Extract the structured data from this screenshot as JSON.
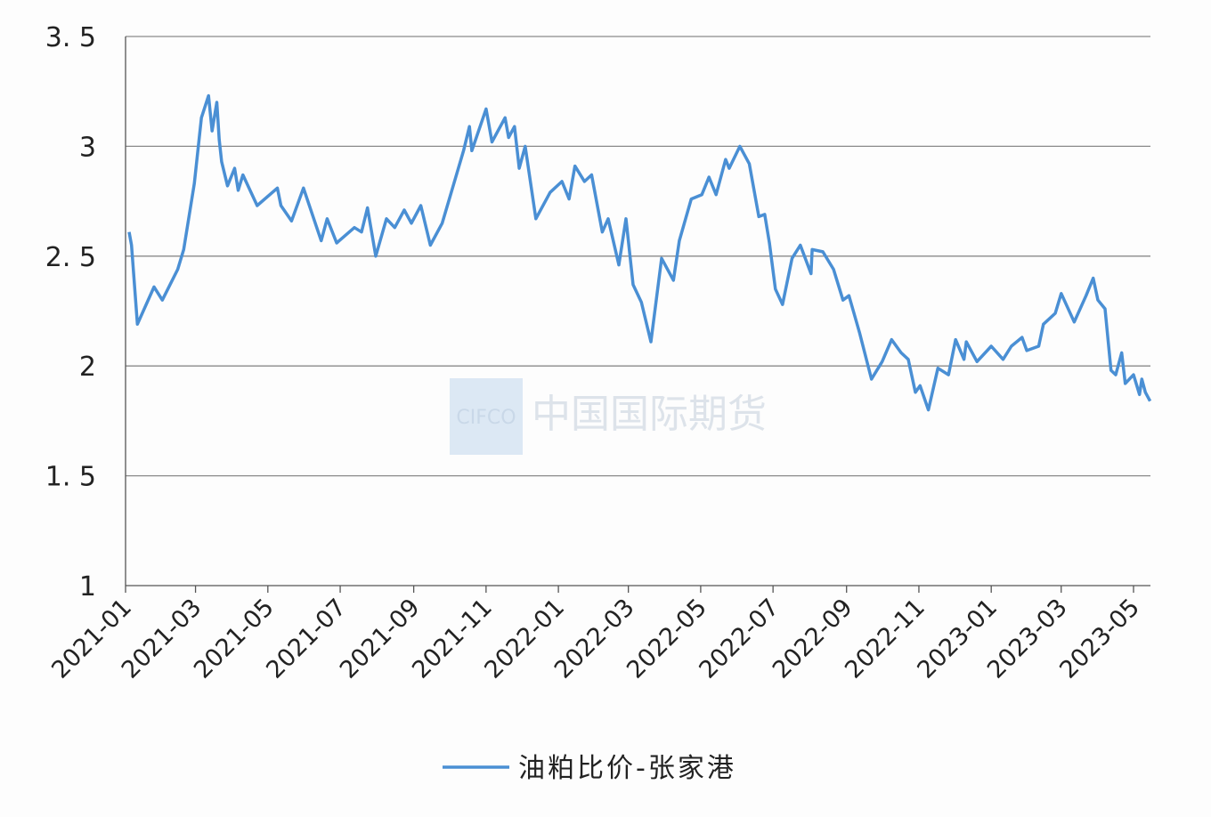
{
  "chart_data": {
    "type": "line",
    "title": "",
    "xlabel": "",
    "ylabel": "",
    "ylim": [
      1,
      3.5
    ],
    "yticks": [
      "3.5",
      "3",
      "2.5",
      "2",
      "1.5",
      "1"
    ],
    "ytick_values": [
      3.5,
      3,
      2.5,
      2,
      1.5,
      1
    ],
    "xlim": [
      "2021-01-01",
      "2023-05-15"
    ],
    "xticks": [
      "2021-01",
      "2021-03",
      "2021-05",
      "2021-07",
      "2021-09",
      "2021-11",
      "2022-01",
      "2022-03",
      "2022-05",
      "2022-07",
      "2022-09",
      "2022-11",
      "2023-01",
      "2023-03",
      "2023-05"
    ],
    "grid": "horizontal",
    "legend_position": "bottom",
    "series": [
      {
        "name": "油粕比价-张家港",
        "color": "#4a8fd4",
        "points": [
          [
            "2021-01-04",
            2.61
          ],
          [
            "2021-01-06",
            2.55
          ],
          [
            "2021-01-11",
            2.19
          ],
          [
            "2021-01-25",
            2.36
          ],
          [
            "2021-02-01",
            2.3
          ],
          [
            "2021-02-14",
            2.44
          ],
          [
            "2021-02-19",
            2.53
          ],
          [
            "2021-02-28",
            2.83
          ],
          [
            "2021-03-06",
            3.13
          ],
          [
            "2021-03-12",
            3.23
          ],
          [
            "2021-03-15",
            3.07
          ],
          [
            "2021-03-19",
            3.2
          ],
          [
            "2021-03-21",
            3.03
          ],
          [
            "2021-03-23",
            2.93
          ],
          [
            "2021-03-28",
            2.82
          ],
          [
            "2021-04-03",
            2.9
          ],
          [
            "2021-04-06",
            2.8
          ],
          [
            "2021-04-10",
            2.87
          ],
          [
            "2021-04-22",
            2.73
          ],
          [
            "2021-05-09",
            2.81
          ],
          [
            "2021-05-12",
            2.73
          ],
          [
            "2021-05-21",
            2.66
          ],
          [
            "2021-05-31",
            2.81
          ],
          [
            "2021-06-15",
            2.57
          ],
          [
            "2021-06-20",
            2.67
          ],
          [
            "2021-06-28",
            2.56
          ],
          [
            "2021-07-13",
            2.63
          ],
          [
            "2021-07-19",
            2.61
          ],
          [
            "2021-07-24",
            2.72
          ],
          [
            "2021-07-31",
            2.5
          ],
          [
            "2021-08-09",
            2.67
          ],
          [
            "2021-08-16",
            2.63
          ],
          [
            "2021-08-24",
            2.71
          ],
          [
            "2021-08-30",
            2.65
          ],
          [
            "2021-09-07",
            2.73
          ],
          [
            "2021-09-15",
            2.55
          ],
          [
            "2021-09-25",
            2.65
          ],
          [
            "2021-10-13",
            2.98
          ],
          [
            "2021-10-18",
            3.09
          ],
          [
            "2021-10-20",
            2.98
          ],
          [
            "2021-11-01",
            3.17
          ],
          [
            "2021-11-06",
            3.02
          ],
          [
            "2021-11-17",
            3.13
          ],
          [
            "2021-11-20",
            3.04
          ],
          [
            "2021-11-25",
            3.09
          ],
          [
            "2021-11-29",
            2.9
          ],
          [
            "2021-12-04",
            3.0
          ],
          [
            "2021-12-13",
            2.67
          ],
          [
            "2021-12-25",
            2.79
          ],
          [
            "2022-01-04",
            2.84
          ],
          [
            "2022-01-10",
            2.76
          ],
          [
            "2022-01-15",
            2.91
          ],
          [
            "2022-01-23",
            2.84
          ],
          [
            "2022-01-29",
            2.87
          ],
          [
            "2022-02-07",
            2.61
          ],
          [
            "2022-02-12",
            2.67
          ],
          [
            "2022-02-21",
            2.46
          ],
          [
            "2022-02-27",
            2.67
          ],
          [
            "2022-03-05",
            2.37
          ],
          [
            "2022-03-12",
            2.29
          ],
          [
            "2022-03-20",
            2.11
          ],
          [
            "2022-03-29",
            2.49
          ],
          [
            "2022-04-08",
            2.39
          ],
          [
            "2022-04-13",
            2.57
          ],
          [
            "2022-04-23",
            2.76
          ],
          [
            "2022-05-02",
            2.78
          ],
          [
            "2022-05-08",
            2.86
          ],
          [
            "2022-05-14",
            2.78
          ],
          [
            "2022-05-22",
            2.94
          ],
          [
            "2022-05-25",
            2.9
          ],
          [
            "2022-06-03",
            3.0
          ],
          [
            "2022-06-11",
            2.92
          ],
          [
            "2022-06-19",
            2.68
          ],
          [
            "2022-06-24",
            2.69
          ],
          [
            "2022-06-28",
            2.56
          ],
          [
            "2022-07-03",
            2.35
          ],
          [
            "2022-07-09",
            2.28
          ],
          [
            "2022-07-17",
            2.49
          ],
          [
            "2022-07-24",
            2.55
          ],
          [
            "2022-08-02",
            2.42
          ],
          [
            "2022-08-03",
            2.53
          ],
          [
            "2022-08-12",
            2.52
          ],
          [
            "2022-08-21",
            2.44
          ],
          [
            "2022-08-29",
            2.3
          ],
          [
            "2022-09-03",
            2.32
          ],
          [
            "2022-09-12",
            2.15
          ],
          [
            "2022-09-22",
            1.94
          ],
          [
            "2022-10-01",
            2.02
          ],
          [
            "2022-10-09",
            2.12
          ],
          [
            "2022-10-17",
            2.06
          ],
          [
            "2022-10-23",
            2.03
          ],
          [
            "2022-10-29",
            1.88
          ],
          [
            "2022-11-02",
            1.91
          ],
          [
            "2022-11-09",
            1.8
          ],
          [
            "2022-11-17",
            1.99
          ],
          [
            "2022-11-26",
            1.96
          ],
          [
            "2022-12-02",
            2.12
          ],
          [
            "2022-12-09",
            2.03
          ],
          [
            "2022-12-11",
            2.11
          ],
          [
            "2022-12-20",
            2.02
          ],
          [
            "2023-01-01",
            2.09
          ],
          [
            "2023-01-11",
            2.03
          ],
          [
            "2023-01-18",
            2.09
          ],
          [
            "2023-01-27",
            2.13
          ],
          [
            "2023-01-31",
            2.07
          ],
          [
            "2023-02-10",
            2.09
          ],
          [
            "2023-02-14",
            2.19
          ],
          [
            "2023-02-24",
            2.24
          ],
          [
            "2023-03-01",
            2.33
          ],
          [
            "2023-03-12",
            2.2
          ],
          [
            "2023-03-22",
            2.32
          ],
          [
            "2023-03-28",
            2.4
          ],
          [
            "2023-04-01",
            2.3
          ],
          [
            "2023-04-07",
            2.26
          ],
          [
            "2023-04-12",
            1.98
          ],
          [
            "2023-04-16",
            1.96
          ],
          [
            "2023-04-21",
            2.06
          ],
          [
            "2023-04-24",
            1.92
          ],
          [
            "2023-05-01",
            1.96
          ],
          [
            "2023-05-06",
            1.87
          ],
          [
            "2023-05-08",
            1.94
          ],
          [
            "2023-05-11",
            1.88
          ],
          [
            "2023-05-15",
            1.84
          ]
        ]
      }
    ],
    "watermark": {
      "logo": "CIFCO",
      "text": "中国国际期货"
    }
  }
}
